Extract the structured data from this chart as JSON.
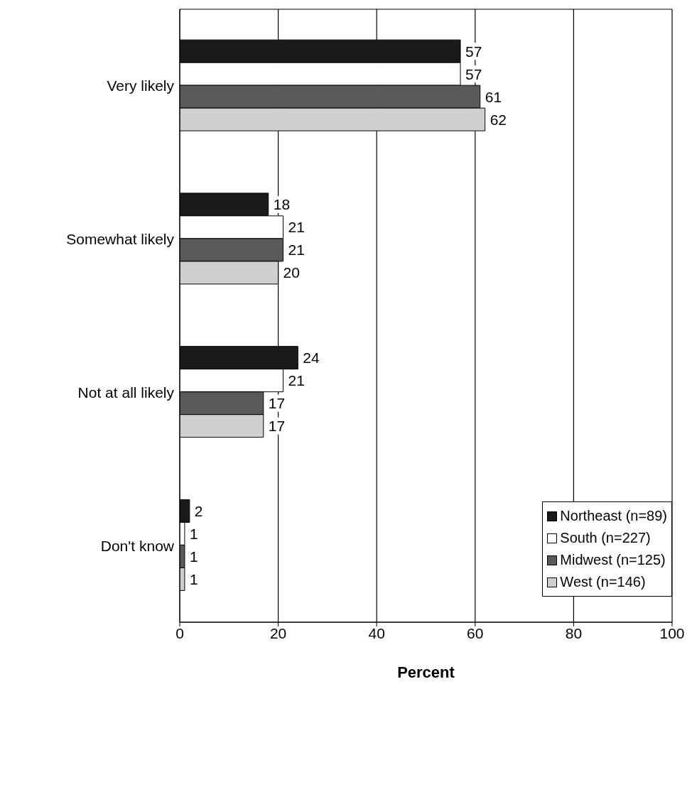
{
  "chart_data": {
    "type": "bar",
    "orientation": "horizontal",
    "xlabel": "Percent",
    "categories": [
      "Very likely",
      "Somewhat likely",
      "Not at all likely",
      "Don't know"
    ],
    "series": [
      {
        "name": "Northeast (n=89)",
        "color": "#1a1a1a",
        "values": [
          57,
          18,
          24,
          2
        ]
      },
      {
        "name": "South (n=227)",
        "color": "#ffffff",
        "values": [
          57,
          21,
          21,
          1
        ]
      },
      {
        "name": "Midwest (n=125)",
        "color": "#5a5a5a",
        "values": [
          61,
          21,
          17,
          1
        ]
      },
      {
        "name": "West (n=146)",
        "color": "#cfcfcf",
        "values": [
          62,
          20,
          17,
          1
        ]
      }
    ],
    "xlim": [
      0,
      100
    ],
    "xticks": [
      0,
      20,
      40,
      60,
      80,
      100
    ],
    "grid": "x",
    "legend": "bottom right",
    "data_labels": true
  }
}
